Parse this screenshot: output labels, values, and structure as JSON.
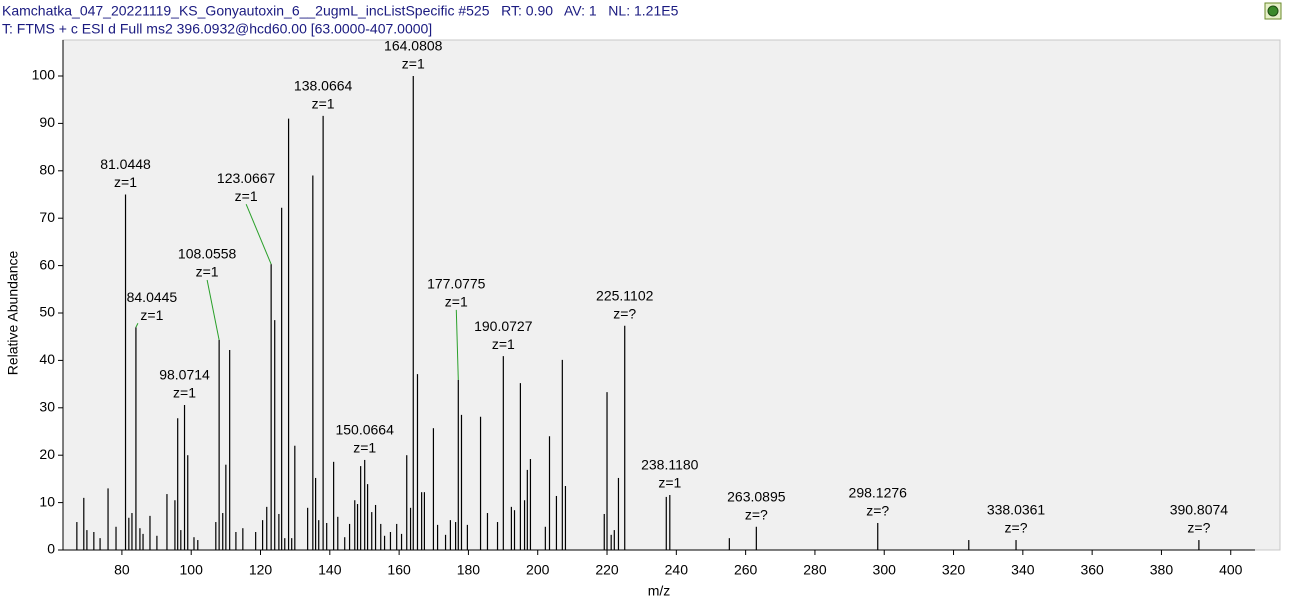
{
  "header": {
    "line1": "Kamchatka_047_20221119_KS_Gonyautoxin_6__2ugmL_incListSpecific #525   RT: 0.90   AV: 1   NL: 1.21E5",
    "line2": "T: FTMS + c ESI d Full ms2 396.0932@hcd60.00 [63.0000-407.0000]"
  },
  "chart_data": {
    "type": "stick",
    "x_label": "m/z",
    "y_label": "Relative Abundance",
    "color": "#000000",
    "xlim": [
      63,
      407
    ],
    "ylim": [
      0,
      100
    ],
    "xticks": [
      80,
      100,
      120,
      140,
      160,
      180,
      200,
      220,
      240,
      260,
      280,
      300,
      320,
      340,
      360,
      380,
      400
    ],
    "yticks": [
      0,
      10,
      20,
      30,
      40,
      50,
      60,
      70,
      80,
      90,
      100
    ],
    "x": [
      67.0,
      69.0,
      69.9,
      71.9,
      73.7,
      76.0,
      78.3,
      81.0448,
      82.0,
      82.9,
      84.0445,
      85.2,
      86.1,
      88.1,
      90.1,
      93.0,
      95.3,
      96.1,
      97.0,
      98.0714,
      99.0,
      100.8,
      101.9,
      107.1,
      108.0558,
      109.1,
      110.0,
      111.1,
      112.9,
      114.9,
      118.6,
      120.6,
      121.8,
      123.0667,
      124.1,
      125.3,
      126.1,
      127.0,
      128.1,
      129.0,
      129.9,
      133.6,
      135.1,
      135.9,
      136.8,
      138.0664,
      139.1,
      141.1,
      142.3,
      144.3,
      145.7,
      147.2,
      148.0,
      148.9,
      150.0664,
      150.9,
      152.1,
      153.2,
      154.7,
      155.8,
      157.5,
      159.3,
      160.7,
      162.2,
      163.3,
      164.0808,
      165.3,
      166.5,
      167.3,
      169.9,
      171.1,
      173.4,
      174.8,
      176.3,
      177.0775,
      178.0,
      179.7,
      183.5,
      185.5,
      188.4,
      190.0727,
      192.4,
      193.3,
      195.0,
      196.2,
      197.0,
      197.9,
      202.2,
      203.4,
      205.4,
      207.1,
      208.0,
      219.2,
      220.0,
      221.2,
      222.1,
      223.3,
      225.1102,
      237.1,
      238.118,
      255.3,
      263.0895,
      298.1276,
      324.4,
      338.0361,
      390.8074
    ],
    "values": [
      5.9,
      11,
      4.2,
      3.8,
      2.5,
      13,
      4.9,
      75,
      6.8,
      7.8,
      47,
      4.6,
      3.4,
      7.2,
      3,
      11.8,
      10.5,
      27.8,
      4.2,
      30.6,
      20,
      2.7,
      2.1,
      5.9,
      44.3,
      7.8,
      18,
      42.2,
      3.8,
      4.6,
      3.8,
      6.3,
      9.1,
      60.3,
      48.5,
      7.6,
      72.2,
      2.5,
      91,
      2.5,
      22,
      8.9,
      79,
      15.2,
      6.3,
      91.6,
      5.7,
      18.6,
      7,
      2.7,
      5.5,
      10.5,
      9.7,
      17.7,
      19,
      13.9,
      8,
      9.5,
      5.5,
      3,
      3.8,
      5.5,
      3.4,
      20,
      8.9,
      100,
      37.1,
      12.2,
      12.2,
      25.7,
      5.3,
      3.2,
      6.3,
      5.9,
      35.9,
      28.5,
      5.3,
      28.1,
      7.8,
      5.9,
      40.9,
      9.1,
      8.4,
      35.2,
      10.5,
      16.9,
      19.2,
      4.9,
      24,
      11.4,
      40.1,
      13.5,
      7.6,
      33.3,
      3.2,
      4.2,
      15.2,
      47.3,
      11.2,
      11.6,
      2.5,
      4.9,
      5.7,
      2.1,
      2.1,
      2.1
    ],
    "peak_labels": [
      null,
      null,
      null,
      null,
      null,
      null,
      null,
      "81.0448",
      null,
      null,
      "84.0445",
      null,
      null,
      null,
      null,
      null,
      null,
      null,
      null,
      "98.0714",
      null,
      null,
      null,
      null,
      "108.0558",
      null,
      null,
      null,
      null,
      null,
      null,
      null,
      null,
      "123.0667",
      null,
      null,
      null,
      null,
      null,
      null,
      null,
      null,
      null,
      null,
      null,
      "138.0664",
      null,
      null,
      null,
      null,
      null,
      null,
      null,
      null,
      "150.0664",
      null,
      null,
      null,
      null,
      null,
      null,
      null,
      null,
      null,
      null,
      "164.0808",
      null,
      null,
      null,
      null,
      null,
      null,
      null,
      null,
      "177.0775",
      null,
      null,
      null,
      null,
      null,
      "190.0727",
      null,
      null,
      null,
      null,
      null,
      null,
      null,
      null,
      null,
      null,
      null,
      null,
      null,
      null,
      null,
      null,
      "225.1102",
      null,
      "238.1180",
      null,
      "263.0895",
      "298.1276",
      null,
      "338.0361",
      "390.8074"
    ],
    "charge_labels": [
      null,
      null,
      null,
      null,
      null,
      null,
      null,
      "z=1",
      null,
      null,
      "z=1",
      null,
      null,
      null,
      null,
      null,
      null,
      null,
      null,
      "z=1",
      null,
      null,
      null,
      null,
      "z=1",
      null,
      null,
      null,
      null,
      null,
      null,
      null,
      null,
      "z=1",
      null,
      null,
      null,
      null,
      null,
      null,
      null,
      null,
      null,
      null,
      null,
      "z=1",
      null,
      null,
      null,
      null,
      null,
      null,
      null,
      null,
      "z=1",
      null,
      null,
      null,
      null,
      null,
      null,
      null,
      null,
      null,
      null,
      "z=1",
      null,
      null,
      null,
      null,
      null,
      null,
      null,
      null,
      "z=1",
      null,
      null,
      null,
      null,
      null,
      "z=1",
      null,
      null,
      null,
      null,
      null,
      null,
      null,
      null,
      null,
      null,
      null,
      null,
      null,
      null,
      null,
      null,
      "z=?",
      null,
      "z=1",
      null,
      "z=?",
      "z=?",
      null,
      "z=?",
      "z=?"
    ]
  }
}
